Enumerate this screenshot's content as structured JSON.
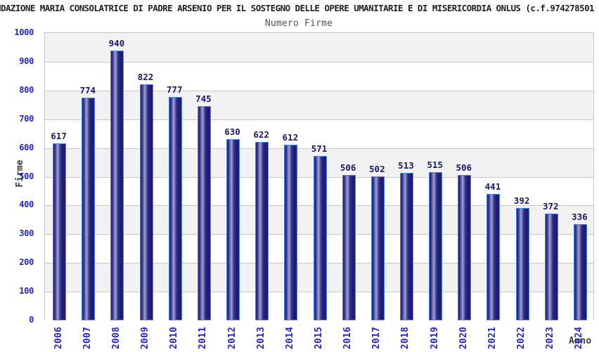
{
  "header": {
    "title": "NDAZIONE MARIA CONSOLATRICE DI PADRE ARSENIO PER IL SOSTEGNO DELLE OPERE UMANITARIE E DI MISERICORDIA ONLUS (c.f.974278501"
  },
  "chart_data": {
    "type": "bar",
    "title": "Numero Firme",
    "xlabel": "Anno",
    "ylabel": "Firme",
    "categories": [
      "2006",
      "2007",
      "2008",
      "2009",
      "2010",
      "2011",
      "2012",
      "2013",
      "2014",
      "2015",
      "2016",
      "2017",
      "2018",
      "2019",
      "2020",
      "2021",
      "2022",
      "2023",
      "2024"
    ],
    "values": [
      617,
      774,
      940,
      822,
      777,
      745,
      630,
      622,
      612,
      571,
      506,
      502,
      513,
      515,
      506,
      441,
      392,
      372,
      336
    ],
    "ylim": [
      0,
      1000
    ],
    "ytick_step": 100,
    "grid": "horizontal alternating bands",
    "legend": "none",
    "colors": {
      "bar_dark": "#1d1d78",
      "bar_highlight": "#a2a2cf",
      "bar_border": "#4d85e8",
      "value_label": "#191970",
      "tick_label": "#2424cc",
      "axis_title": "#3c3c3c",
      "band_gray": "#f2f2f2",
      "band_white": "#ffffff",
      "grid_line": "#c8c8c8",
      "title": "#222222",
      "subtitle": "#555555"
    }
  }
}
